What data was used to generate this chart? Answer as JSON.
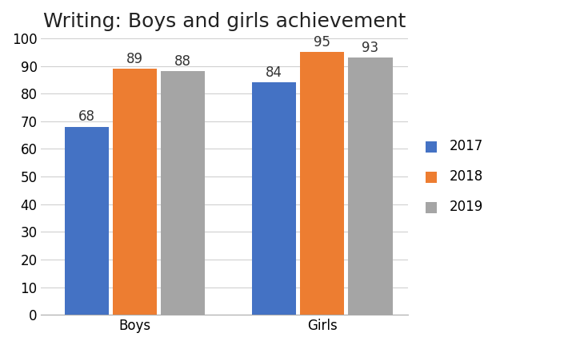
{
  "title": "Writing: Boys and girls achievement",
  "categories": [
    "Boys",
    "Girls"
  ],
  "years": [
    "2017",
    "2018",
    "2019"
  ],
  "values": {
    "Boys": [
      68,
      89,
      88
    ],
    "Girls": [
      84,
      95,
      93
    ]
  },
  "bar_colors": [
    "#4472C4",
    "#ED7D31",
    "#A5A5A5"
  ],
  "ylim": [
    0,
    100
  ],
  "yticks": [
    0,
    10,
    20,
    30,
    40,
    50,
    60,
    70,
    80,
    90,
    100
  ],
  "title_fontsize": 18,
  "tick_fontsize": 12,
  "annotation_fontsize": 12,
  "legend_fontsize": 12,
  "bar_width": 0.18,
  "background_color": "#FFFFFF",
  "grid_color": "#D0D0D0",
  "legend_square_size": 10
}
